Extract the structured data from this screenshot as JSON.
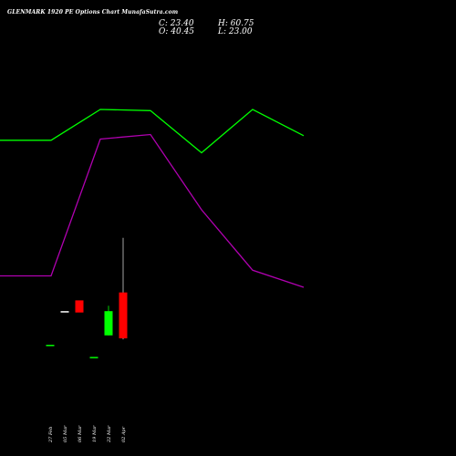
{
  "header": {
    "title": "GLENMARK 1920  PE Options  Chart MunafaSutra.com",
    "close": "C: 23.40",
    "high": "H: 60.75",
    "open": "O: 40.45",
    "low": "L: 23.00"
  },
  "chart_data": [
    {
      "type": "line",
      "series": [
        {
          "color": "#00ff00",
          "values": [
            54.5,
            54.5,
            68.0,
            67.5,
            49.0,
            68.0,
            56.5
          ]
        },
        {
          "color": "#b000b0",
          "values": [
            -5.0,
            -5.0,
            55.0,
            57.0,
            24.0,
            -2.5,
            -10.0
          ]
        }
      ]
    },
    {
      "type": "candlestick",
      "categories": [
        "27 Feb",
        "05 Mar",
        "06 Mar",
        "19 Mar",
        "22 Mar",
        "02 Apr"
      ],
      "candles": [
        {
          "date": "27 Feb",
          "open": 21.0,
          "high": 21.0,
          "low": 21.0,
          "close": 21.0,
          "color": "#00ff00"
        },
        {
          "date": "05 Mar",
          "open": 33.5,
          "high": 33.5,
          "low": 33.5,
          "close": 33.5,
          "color": "#ffffff"
        },
        {
          "date": "06 Mar",
          "open": 37.5,
          "high": 37.5,
          "low": 33.0,
          "close": 33.0,
          "color": "#ff0000"
        },
        {
          "date": "19 Mar",
          "open": 16.5,
          "high": 16.5,
          "low": 16.5,
          "close": 16.5,
          "color": "#00ff00"
        },
        {
          "date": "22 Mar",
          "open": 24.5,
          "high": 35.5,
          "low": 24.5,
          "close": 33.5,
          "color": "#00ff00"
        },
        {
          "date": "02 Apr",
          "open": 40.45,
          "high": 60.75,
          "low": 23.0,
          "close": 23.4,
          "color": "#ff0000"
        }
      ]
    }
  ]
}
